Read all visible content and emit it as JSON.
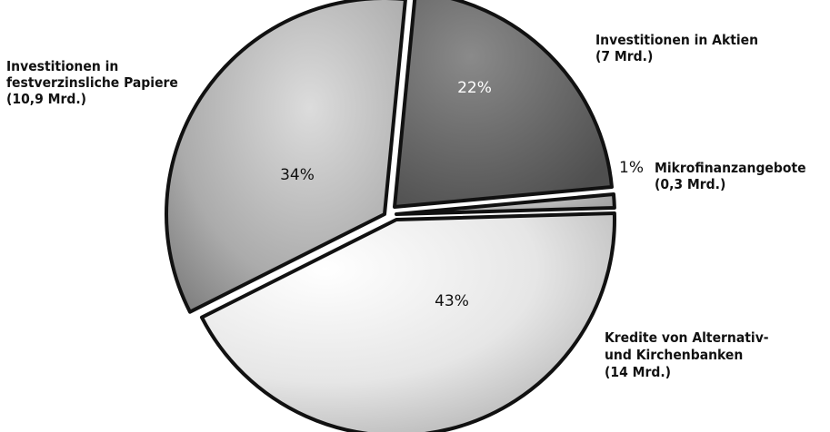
{
  "chart_data": {
    "type": "pie",
    "title": "",
    "slices": [
      {
        "label_lines": [
          "Investitionen in Aktien",
          "(7 Mrd.)"
        ],
        "amount": "7 Mrd.",
        "value": 22,
        "pct_label": "22%",
        "color": "#686868"
      },
      {
        "label_lines": [
          "Mikrofinanzangebote",
          "(0,3 Mrd.)"
        ],
        "amount": "0,3 Mrd.",
        "value": 1,
        "pct_label": "1%",
        "color": "#bdbdbd"
      },
      {
        "label_lines": [
          "Kredite von Alternativ-",
          "und Kirchenbanken",
          "(14 Mrd.)"
        ],
        "amount": "14 Mrd.",
        "value": 43,
        "pct_label": "43%",
        "color": "#e2e2e2"
      },
      {
        "label_lines": [
          "Investitionen in",
          "festverzinsliche Papiere",
          "(10,9 Mrd.)"
        ],
        "amount": "10,9 Mrd.",
        "value": 34,
        "pct_label": "34%",
        "color": "#a9a9a9"
      }
    ]
  }
}
